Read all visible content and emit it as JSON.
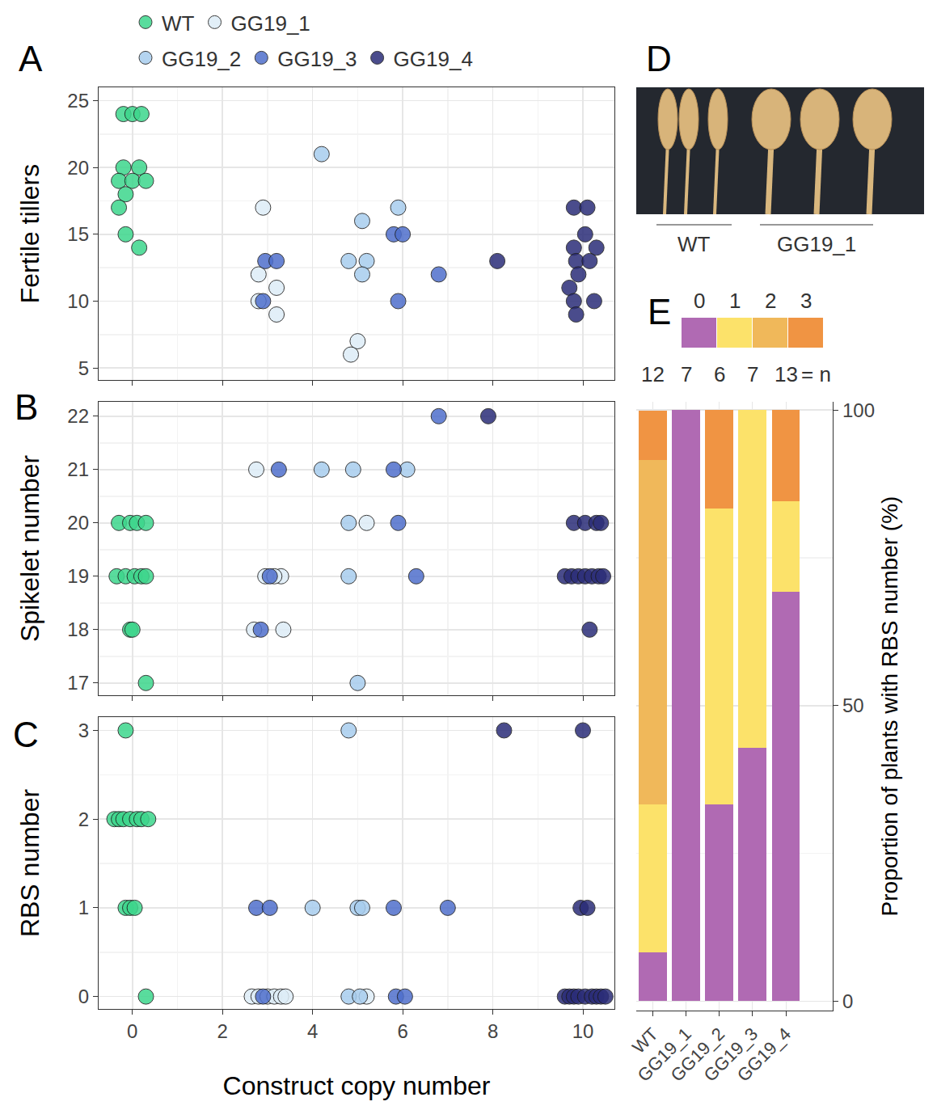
{
  "chart_data": [
    {
      "panel": "A",
      "type": "scatter",
      "marker": "circle",
      "y_label": "Fertile tillers",
      "xlim": [
        -0.75,
        10.7
      ],
      "xticks": [
        0,
        2,
        4,
        6,
        8,
        10
      ],
      "ylim": [
        4.1,
        26
      ],
      "yticks": [
        5,
        10,
        15,
        20,
        25
      ],
      "grid": true,
      "legend": "top",
      "tick_labels": "y",
      "series": [
        {
          "name": "WT",
          "color": "#3dd68c",
          "x": [
            -0.2,
            0,
            0.2,
            -0.2,
            0.15,
            -0.3,
            0,
            0.3,
            -0.15,
            -0.3,
            -0.15,
            0.15
          ],
          "values": [
            24,
            24,
            24,
            20,
            20,
            19,
            19,
            19,
            18,
            17,
            15,
            14
          ]
        },
        {
          "name": "GG19_1",
          "color": "#deedf7",
          "x": [
            2.9,
            2.8,
            2.8,
            3.2,
            3.2,
            5.0,
            4.85
          ],
          "values": [
            17,
            12,
            10,
            11,
            9,
            7,
            6
          ]
        },
        {
          "name": "GG19_2",
          "color": "#a8cdee",
          "x": [
            4.2,
            5.9,
            5.1,
            4.8,
            5.2,
            5.1
          ],
          "values": [
            21,
            17,
            16,
            13,
            13,
            12
          ]
        },
        {
          "name": "GG19_3",
          "color": "#4f6fcc",
          "x": [
            2.95,
            3.2,
            2.9,
            5.8,
            6.0,
            5.9,
            6.8
          ],
          "values": [
            13,
            13,
            10,
            15,
            15,
            10,
            12
          ]
        },
        {
          "name": "GG19_4",
          "color": "#2b2d78",
          "x": [
            8.1,
            9.8,
            10.1,
            10.05,
            9.8,
            10.3,
            9.85,
            10.15,
            9.9,
            9.7,
            9.8,
            10.25,
            9.85
          ],
          "values": [
            13,
            17,
            17,
            15,
            14,
            14,
            13,
            13,
            12,
            11,
            10,
            10,
            9
          ]
        }
      ]
    },
    {
      "panel": "B",
      "type": "scatter",
      "marker": "circle",
      "y_label": "Spikelet number",
      "xlim": [
        -0.75,
        10.7
      ],
      "xticks": [
        0,
        2,
        4,
        6,
        8,
        10
      ],
      "ylim": [
        16.77,
        22.27
      ],
      "yticks": [
        17,
        18,
        19,
        20,
        21,
        22
      ],
      "grid": true,
      "tick_labels": "y",
      "series": [
        {
          "name": "WT",
          "color": "#3dd68c",
          "x": [
            -0.3,
            -0.05,
            0.1,
            0.3,
            -0.35,
            -0.15,
            0.05,
            0.2,
            0.3,
            -0.05,
            0,
            0.3
          ],
          "values": [
            20,
            20,
            20,
            20,
            19,
            19,
            19,
            19,
            19,
            18,
            18,
            17
          ]
        },
        {
          "name": "GG19_1",
          "color": "#deedf7",
          "x": [
            2.75,
            2.95,
            3.3,
            2.7,
            3.35,
            5.2,
            3.15
          ],
          "values": [
            21,
            19,
            19,
            18,
            18,
            20,
            19
          ]
        },
        {
          "name": "GG19_2",
          "color": "#a8cdee",
          "x": [
            4.2,
            4.9,
            4.8,
            4.8,
            5.0,
            6.1
          ],
          "values": [
            21,
            21,
            20,
            19,
            17,
            21
          ]
        },
        {
          "name": "GG19_3",
          "color": "#4f6fcc",
          "x": [
            3.25,
            3.05,
            2.85,
            5.8,
            5.9,
            6.3,
            6.8
          ],
          "values": [
            21,
            19,
            18,
            21,
            20,
            19,
            22
          ]
        },
        {
          "name": "GG19_4",
          "color": "#2b2d78",
          "x": [
            7.9,
            9.8,
            10.05,
            10.3,
            10.4,
            9.6,
            9.75,
            9.9,
            10.05,
            10.2,
            10.35,
            10.45,
            10.15
          ],
          "values": [
            22,
            20,
            20,
            20,
            20,
            19,
            19,
            19,
            19,
            19,
            19,
            19,
            18
          ]
        }
      ]
    },
    {
      "panel": "C",
      "type": "scatter",
      "marker": "circle",
      "y_label": "RBS number",
      "x_label": "Construct copy number",
      "xlim": [
        -0.75,
        10.7
      ],
      "xticks": [
        0,
        2,
        4,
        6,
        8,
        10
      ],
      "ylim": [
        -0.14,
        3.15
      ],
      "yticks": [
        0,
        1,
        2,
        3
      ],
      "grid": true,
      "tick_labels": true,
      "series": [
        {
          "name": "WT",
          "color": "#3dd68c",
          "x": [
            -0.15,
            -0.4,
            -0.3,
            -0.2,
            -0.05,
            0.1,
            0.2,
            0.35,
            -0.15,
            -0.05,
            0.05,
            0.3
          ],
          "values": [
            3,
            2,
            2,
            2,
            2,
            2,
            2,
            2,
            1,
            1,
            1,
            0
          ]
        },
        {
          "name": "GG19_1",
          "color": "#deedf7",
          "x": [
            2.65,
            2.8,
            3.0,
            3.15,
            3.3,
            3.4,
            5.2
          ],
          "values": [
            0,
            0,
            0,
            0,
            0,
            0,
            0
          ]
        },
        {
          "name": "GG19_2",
          "color": "#a8cdee",
          "x": [
            4.8,
            4.0,
            5.0,
            5.1,
            4.8,
            5.05
          ],
          "values": [
            3,
            1,
            1,
            1,
            0,
            0
          ]
        },
        {
          "name": "GG19_3",
          "color": "#4f6fcc",
          "x": [
            2.75,
            3.05,
            5.8,
            7.0,
            2.9,
            5.85,
            6.05
          ],
          "values": [
            1,
            1,
            1,
            1,
            0,
            0,
            0
          ]
        },
        {
          "name": "GG19_4",
          "color": "#2b2d78",
          "x": [
            8.25,
            10.0,
            9.95,
            10.1,
            9.6,
            9.7,
            9.8,
            9.9,
            10.05,
            10.2,
            10.3,
            10.4,
            10.5
          ],
          "values": [
            3,
            3,
            1,
            1,
            0,
            0,
            0,
            0,
            0,
            0,
            0,
            0,
            0
          ]
        }
      ]
    },
    {
      "panel": "D",
      "type": "image",
      "labels": [
        "WT",
        "GG19_1"
      ]
    },
    {
      "panel": "E",
      "type": "bar",
      "stacked": true,
      "y_label": "Proportion of plants with RBS number (%)",
      "categories": [
        "WT",
        "GG19_1",
        "GG19_2",
        "GG19_3",
        "GG19_4"
      ],
      "n": [
        12,
        7,
        6,
        7,
        13
      ],
      "n_label": "= n",
      "ylim": [
        -1.6,
        101.4
      ],
      "yticks": [
        0,
        50,
        100
      ],
      "grid": true,
      "legend": "top",
      "series": [
        {
          "name": "0",
          "color": "#b06ab3",
          "values": [
            8.3,
            100,
            33.3,
            42.9,
            69.2
          ]
        },
        {
          "name": "1",
          "color": "#fce26a",
          "values": [
            25,
            0,
            50,
            57.1,
            15.4
          ]
        },
        {
          "name": "2",
          "color": "#f0b85a",
          "values": [
            58.3,
            0,
            0,
            0,
            0
          ]
        },
        {
          "name": "3",
          "color": "#f09443",
          "values": [
            8.3,
            0,
            16.7,
            0,
            15.4
          ]
        }
      ]
    }
  ]
}
